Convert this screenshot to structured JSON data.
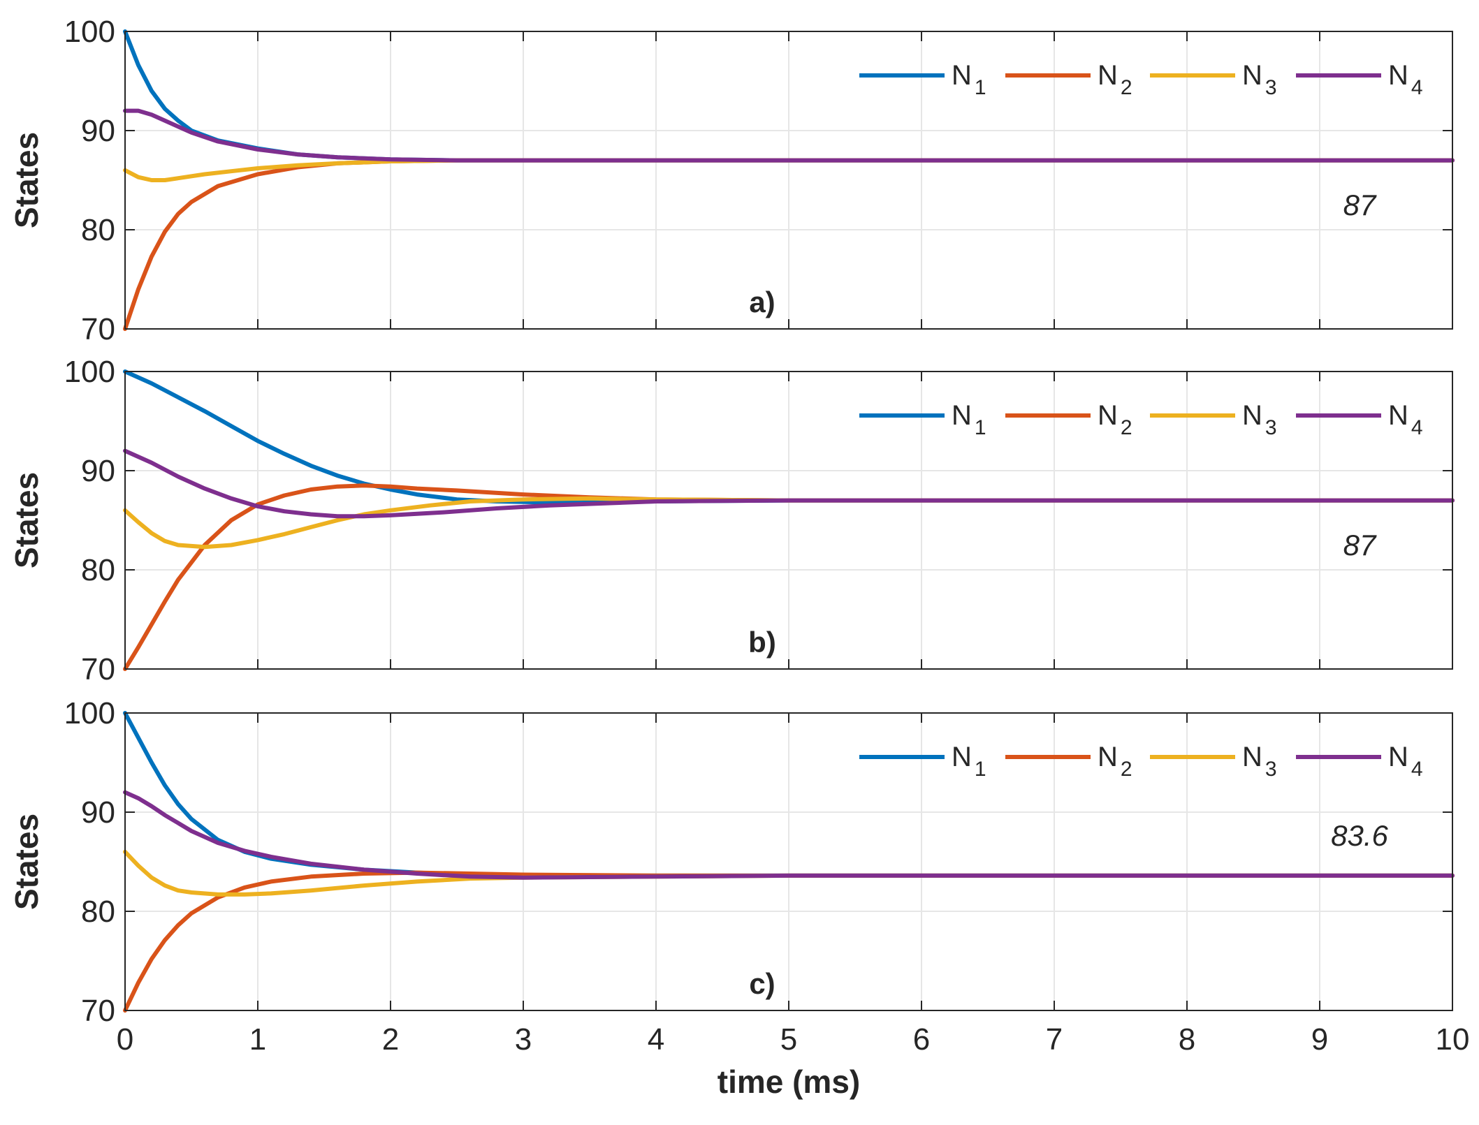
{
  "chart_data": [
    {
      "type": "line",
      "panel_label": "a)",
      "ylabel": "States",
      "ylim": [
        70,
        100
      ],
      "yticks": [
        "70",
        "80",
        "90",
        "100"
      ],
      "xlim": [
        0,
        10
      ],
      "grid": true,
      "legend_position": "top-right",
      "annotation": "87",
      "annotation_value": 87,
      "series": [
        {
          "name": "N1",
          "base": "N",
          "sub": "1",
          "color": "#0072BD",
          "start": 100,
          "final": 87,
          "points": [
            [
              0,
              100
            ],
            [
              0.1,
              96.6
            ],
            [
              0.2,
              94.0
            ],
            [
              0.3,
              92.2
            ],
            [
              0.4,
              91.0
            ],
            [
              0.5,
              90.0
            ],
            [
              0.7,
              89.0
            ],
            [
              1.0,
              88.2
            ],
            [
              1.3,
              87.6
            ],
            [
              1.6,
              87.3
            ],
            [
              2.0,
              87.1
            ],
            [
              2.5,
              87.0
            ],
            [
              3.0,
              87.0
            ],
            [
              10,
              87.0
            ]
          ]
        },
        {
          "name": "N2",
          "base": "N",
          "sub": "2",
          "color": "#D95319",
          "start": 70,
          "final": 87,
          "points": [
            [
              0,
              70
            ],
            [
              0.1,
              74.0
            ],
            [
              0.2,
              77.3
            ],
            [
              0.3,
              79.8
            ],
            [
              0.4,
              81.6
            ],
            [
              0.5,
              82.8
            ],
            [
              0.7,
              84.4
            ],
            [
              1.0,
              85.6
            ],
            [
              1.3,
              86.3
            ],
            [
              1.6,
              86.7
            ],
            [
              2.0,
              86.9
            ],
            [
              2.5,
              87.0
            ],
            [
              3.0,
              87.0
            ],
            [
              10,
              87.0
            ]
          ]
        },
        {
          "name": "N3",
          "base": "N",
          "sub": "3",
          "color": "#EDB120",
          "start": 86,
          "final": 87,
          "points": [
            [
              0,
              86
            ],
            [
              0.1,
              85.3
            ],
            [
              0.2,
              85.0
            ],
            [
              0.3,
              85.0
            ],
            [
              0.4,
              85.2
            ],
            [
              0.6,
              85.6
            ],
            [
              0.8,
              85.9
            ],
            [
              1.0,
              86.2
            ],
            [
              1.3,
              86.5
            ],
            [
              1.6,
              86.7
            ],
            [
              2.0,
              86.9
            ],
            [
              2.5,
              87.0
            ],
            [
              3.0,
              87.0
            ],
            [
              10,
              87.0
            ]
          ]
        },
        {
          "name": "N4",
          "base": "N",
          "sub": "4",
          "color": "#7E2F8E",
          "start": 92,
          "final": 87,
          "points": [
            [
              0,
              92
            ],
            [
              0.1,
              92.0
            ],
            [
              0.2,
              91.6
            ],
            [
              0.3,
              91.0
            ],
            [
              0.4,
              90.4
            ],
            [
              0.5,
              89.8
            ],
            [
              0.7,
              88.9
            ],
            [
              1.0,
              88.1
            ],
            [
              1.3,
              87.6
            ],
            [
              1.6,
              87.3
            ],
            [
              2.0,
              87.1
            ],
            [
              2.5,
              87.0
            ],
            [
              3.0,
              87.0
            ],
            [
              10,
              87.0
            ]
          ]
        }
      ]
    },
    {
      "type": "line",
      "panel_label": "b)",
      "ylabel": "States",
      "ylim": [
        70,
        100
      ],
      "yticks": [
        "70",
        "80",
        "90",
        "100"
      ],
      "xlim": [
        0,
        10
      ],
      "grid": true,
      "legend_position": "top-right",
      "annotation": "87",
      "annotation_value": 87,
      "series": [
        {
          "name": "N1",
          "base": "N",
          "sub": "1",
          "color": "#0072BD",
          "start": 100,
          "final": 87,
          "points": [
            [
              0,
              100
            ],
            [
              0.2,
              98.8
            ],
            [
              0.4,
              97.4
            ],
            [
              0.6,
              96.0
            ],
            [
              0.8,
              94.5
            ],
            [
              1.0,
              93.0
            ],
            [
              1.2,
              91.7
            ],
            [
              1.4,
              90.5
            ],
            [
              1.6,
              89.5
            ],
            [
              1.8,
              88.7
            ],
            [
              2.0,
              88.1
            ],
            [
              2.2,
              87.6
            ],
            [
              2.5,
              87.1
            ],
            [
              2.8,
              86.9
            ],
            [
              3.2,
              86.8
            ],
            [
              3.6,
              86.8
            ],
            [
              4.0,
              86.9
            ],
            [
              5.0,
              87.0
            ],
            [
              10,
              87.0
            ]
          ]
        },
        {
          "name": "N2",
          "base": "N",
          "sub": "2",
          "color": "#D95319",
          "start": 70,
          "final": 87,
          "points": [
            [
              0,
              70
            ],
            [
              0.1,
              72.2
            ],
            [
              0.2,
              74.5
            ],
            [
              0.3,
              76.8
            ],
            [
              0.4,
              79.0
            ],
            [
              0.6,
              82.5
            ],
            [
              0.8,
              85.0
            ],
            [
              1.0,
              86.6
            ],
            [
              1.2,
              87.5
            ],
            [
              1.4,
              88.1
            ],
            [
              1.6,
              88.4
            ],
            [
              1.8,
              88.5
            ],
            [
              2.0,
              88.4
            ],
            [
              2.2,
              88.2
            ],
            [
              2.5,
              88.0
            ],
            [
              3.0,
              87.6
            ],
            [
              3.5,
              87.3
            ],
            [
              4.0,
              87.1
            ],
            [
              5.0,
              87.0
            ],
            [
              10,
              87.0
            ]
          ]
        },
        {
          "name": "N3",
          "base": "N",
          "sub": "3",
          "color": "#EDB120",
          "start": 86,
          "final": 87,
          "points": [
            [
              0,
              86
            ],
            [
              0.1,
              84.8
            ],
            [
              0.2,
              83.7
            ],
            [
              0.3,
              82.9
            ],
            [
              0.4,
              82.5
            ],
            [
              0.6,
              82.3
            ],
            [
              0.8,
              82.5
            ],
            [
              1.0,
              83.0
            ],
            [
              1.2,
              83.6
            ],
            [
              1.4,
              84.3
            ],
            [
              1.6,
              85.0
            ],
            [
              1.8,
              85.6
            ],
            [
              2.0,
              86.0
            ],
            [
              2.3,
              86.5
            ],
            [
              2.6,
              86.9
            ],
            [
              3.0,
              87.1
            ],
            [
              3.5,
              87.2
            ],
            [
              4.0,
              87.1
            ],
            [
              5.0,
              87.0
            ],
            [
              10,
              87.0
            ]
          ]
        },
        {
          "name": "N4",
          "base": "N",
          "sub": "4",
          "color": "#7E2F8E",
          "start": 92,
          "final": 87,
          "points": [
            [
              0,
              92
            ],
            [
              0.2,
              90.8
            ],
            [
              0.4,
              89.4
            ],
            [
              0.6,
              88.2
            ],
            [
              0.8,
              87.2
            ],
            [
              1.0,
              86.4
            ],
            [
              1.2,
              85.9
            ],
            [
              1.4,
              85.6
            ],
            [
              1.6,
              85.4
            ],
            [
              1.8,
              85.4
            ],
            [
              2.0,
              85.5
            ],
            [
              2.4,
              85.8
            ],
            [
              2.8,
              86.2
            ],
            [
              3.2,
              86.5
            ],
            [
              3.6,
              86.7
            ],
            [
              4.0,
              86.9
            ],
            [
              5.0,
              87.0
            ],
            [
              10,
              87.0
            ]
          ]
        }
      ]
    },
    {
      "type": "line",
      "panel_label": "c)",
      "ylabel": "States",
      "ylim": [
        70,
        100
      ],
      "yticks": [
        "70",
        "80",
        "90",
        "100"
      ],
      "xlim": [
        0,
        10
      ],
      "xticks": [
        "0",
        "1",
        "2",
        "3",
        "4",
        "5",
        "6",
        "7",
        "8",
        "9",
        "10"
      ],
      "xlabel": "time (ms)",
      "grid": true,
      "legend_position": "top-right",
      "annotation": "83.6",
      "annotation_value": 83.6,
      "series": [
        {
          "name": "N1",
          "base": "N",
          "sub": "1",
          "color": "#0072BD",
          "start": 100,
          "final": 83.6,
          "points": [
            [
              0,
              100
            ],
            [
              0.1,
              97.5
            ],
            [
              0.2,
              95.0
            ],
            [
              0.3,
              92.7
            ],
            [
              0.4,
              90.8
            ],
            [
              0.5,
              89.3
            ],
            [
              0.7,
              87.2
            ],
            [
              0.9,
              86.0
            ],
            [
              1.1,
              85.3
            ],
            [
              1.4,
              84.7
            ],
            [
              1.8,
              84.2
            ],
            [
              2.2,
              83.9
            ],
            [
              2.6,
              83.7
            ],
            [
              3.0,
              83.6
            ],
            [
              10,
              83.6
            ]
          ]
        },
        {
          "name": "N2",
          "base": "N",
          "sub": "2",
          "color": "#D95319",
          "start": 70,
          "final": 83.6,
          "points": [
            [
              0,
              70
            ],
            [
              0.1,
              72.8
            ],
            [
              0.2,
              75.2
            ],
            [
              0.3,
              77.1
            ],
            [
              0.4,
              78.6
            ],
            [
              0.5,
              79.8
            ],
            [
              0.7,
              81.4
            ],
            [
              0.9,
              82.4
            ],
            [
              1.1,
              83.0
            ],
            [
              1.4,
              83.5
            ],
            [
              1.8,
              83.8
            ],
            [
              2.2,
              83.9
            ],
            [
              2.6,
              83.8
            ],
            [
              3.0,
              83.7
            ],
            [
              4.0,
              83.6
            ],
            [
              10,
              83.6
            ]
          ]
        },
        {
          "name": "N3",
          "base": "N",
          "sub": "3",
          "color": "#EDB120",
          "start": 86,
          "final": 83.6,
          "points": [
            [
              0,
              86
            ],
            [
              0.1,
              84.6
            ],
            [
              0.2,
              83.4
            ],
            [
              0.3,
              82.6
            ],
            [
              0.4,
              82.1
            ],
            [
              0.5,
              81.9
            ],
            [
              0.7,
              81.7
            ],
            [
              0.9,
              81.7
            ],
            [
              1.1,
              81.8
            ],
            [
              1.4,
              82.1
            ],
            [
              1.8,
              82.6
            ],
            [
              2.2,
              83.0
            ],
            [
              2.6,
              83.3
            ],
            [
              3.0,
              83.4
            ],
            [
              4.0,
              83.5
            ],
            [
              5.0,
              83.6
            ],
            [
              10,
              83.6
            ]
          ]
        },
        {
          "name": "N4",
          "base": "N",
          "sub": "4",
          "color": "#7E2F8E",
          "start": 92,
          "final": 83.6,
          "points": [
            [
              0,
              92
            ],
            [
              0.1,
              91.4
            ],
            [
              0.2,
              90.6
            ],
            [
              0.3,
              89.7
            ],
            [
              0.4,
              88.9
            ],
            [
              0.5,
              88.1
            ],
            [
              0.7,
              86.9
            ],
            [
              0.9,
              86.1
            ],
            [
              1.1,
              85.5
            ],
            [
              1.4,
              84.8
            ],
            [
              1.8,
              84.2
            ],
            [
              2.2,
              83.8
            ],
            [
              2.6,
              83.5
            ],
            [
              3.0,
              83.4
            ],
            [
              4.0,
              83.5
            ],
            [
              5.0,
              83.6
            ],
            [
              10,
              83.6
            ]
          ]
        }
      ]
    }
  ]
}
